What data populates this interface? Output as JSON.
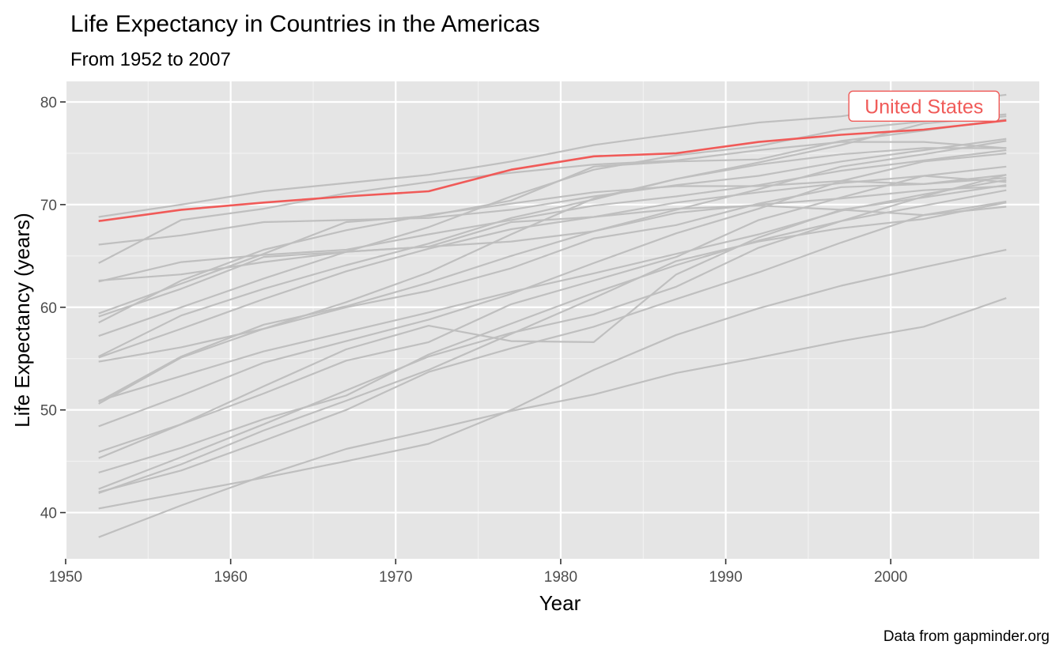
{
  "chart_data": {
    "type": "line",
    "title": "Life Expectancy in Countries in the Americas",
    "subtitle": "From 1952 to 2007",
    "xlabel": "Year",
    "ylabel": "Life Expectancy (years)",
    "caption": "Data from gapminder.org",
    "xlim": [
      1950,
      2009
    ],
    "ylim": [
      35.5,
      82
    ],
    "x_ticks": [
      1950,
      1960,
      1970,
      1980,
      1990,
      2000
    ],
    "y_ticks": [
      40,
      50,
      60,
      70,
      80
    ],
    "x_tick_labels": [
      "1950",
      "1960",
      "1970",
      "1980",
      "1990",
      "2000"
    ],
    "y_tick_labels": [
      "40",
      "50",
      "60",
      "70",
      "80"
    ],
    "grid": true,
    "highlight_color": "#f05a58",
    "background_color": "#e5e5e5",
    "other_line_color": "#bfbfbf",
    "x": [
      1952,
      1957,
      1962,
      1967,
      1972,
      1977,
      1982,
      1987,
      1992,
      1997,
      2002,
      2007
    ],
    "highlight": {
      "name": "United States",
      "label": "United States",
      "values": [
        68.4,
        69.5,
        70.2,
        70.8,
        71.3,
        73.4,
        74.7,
        75.0,
        76.1,
        76.8,
        77.3,
        78.2
      ]
    },
    "series": [
      {
        "values": [
          62.5,
          64.4,
          65.1,
          65.6,
          67.1,
          68.5,
          69.9,
          70.8,
          71.9,
          73.3,
          74.3,
          75.3
        ]
      },
      {
        "values": [
          40.4,
          41.9,
          43.4,
          45.0,
          46.7,
          50.0,
          53.9,
          57.3,
          59.9,
          62.1,
          63.9,
          65.6
        ]
      },
      {
        "values": [
          50.9,
          53.3,
          55.7,
          57.6,
          59.5,
          61.5,
          63.3,
          65.2,
          67.1,
          69.4,
          71.0,
          72.4
        ]
      },
      {
        "values": [
          68.8,
          70.0,
          71.3,
          72.1,
          72.9,
          74.2,
          75.8,
          76.9,
          78.0,
          78.6,
          79.8,
          80.7
        ]
      },
      {
        "values": [
          54.7,
          56.1,
          57.9,
          60.5,
          63.4,
          67.1,
          70.6,
          72.5,
          74.1,
          75.8,
          77.9,
          78.6
        ]
      },
      {
        "values": [
          50.6,
          55.1,
          57.9,
          60.0,
          61.6,
          63.8,
          66.7,
          68.0,
          70.1,
          71.7,
          72.0,
          72.9
        ]
      },
      {
        "values": [
          57.2,
          60.0,
          62.8,
          65.4,
          67.8,
          70.8,
          73.4,
          74.8,
          75.7,
          77.3,
          78.1,
          78.8
        ]
      },
      {
        "values": [
          59.4,
          62.3,
          65.2,
          68.3,
          68.9,
          70.4,
          73.7,
          74.2,
          74.4,
          76.2,
          77.2,
          78.3
        ]
      },
      {
        "values": [
          45.9,
          48.6,
          51.6,
          54.8,
          56.6,
          60.3,
          62.6,
          64.9,
          68.5,
          70.7,
          72.8,
          72.2
        ]
      },
      {
        "values": [
          48.4,
          51.4,
          54.6,
          56.7,
          58.8,
          61.3,
          64.3,
          67.2,
          69.6,
          72.3,
          74.2,
          74.99
        ]
      },
      {
        "values": [
          45.3,
          48.6,
          52.3,
          55.9,
          58.2,
          56.7,
          56.6,
          63.2,
          66.8,
          69.5,
          70.7,
          71.9
        ]
      },
      {
        "values": [
          42.0,
          44.1,
          47.0,
          50.0,
          53.7,
          56.0,
          58.1,
          60.8,
          63.4,
          66.3,
          68.98,
          70.3
        ]
      },
      {
        "values": [
          37.6,
          40.7,
          43.6,
          46.2,
          48.0,
          49.9,
          51.5,
          53.6,
          55.1,
          56.7,
          58.1,
          60.9
        ]
      },
      {
        "values": [
          41.9,
          44.7,
          48.0,
          50.9,
          53.9,
          57.4,
          60.9,
          64.5,
          66.4,
          67.7,
          68.6,
          70.2
        ]
      },
      {
        "values": [
          58.5,
          62.6,
          65.6,
          67.5,
          69.0,
          70.1,
          71.2,
          71.8,
          71.8,
          72.3,
          72.0,
          72.6
        ]
      },
      {
        "values": [
          50.8,
          55.2,
          58.3,
          60.1,
          62.4,
          65.0,
          67.4,
          69.5,
          71.5,
          73.7,
          74.9,
          76.2
        ]
      },
      {
        "values": [
          42.3,
          45.4,
          48.6,
          51.9,
          55.2,
          57.5,
          59.3,
          62.0,
          65.8,
          68.4,
          70.8,
          72.9
        ]
      },
      {
        "values": [
          55.2,
          59.2,
          61.8,
          64.1,
          66.2,
          68.7,
          70.5,
          72.5,
          73.9,
          74.9,
          75.5,
          75.5
        ]
      },
      {
        "values": [
          62.6,
          63.2,
          64.4,
          65.4,
          65.9,
          66.4,
          67.4,
          69.2,
          70.0,
          70.6,
          71.4,
          71.8
        ]
      },
      {
        "values": [
          43.9,
          46.3,
          49.1,
          51.4,
          55.4,
          58.4,
          61.4,
          64.1,
          66.5,
          68.4,
          69.9,
          71.4
        ]
      },
      {
        "values": [
          64.3,
          68.5,
          69.6,
          71.1,
          72.2,
          73.1,
          73.9,
          74.3,
          75.3,
          76.1,
          76.1,
          75.5
        ]
      },
      {
        "values": [
          59.1,
          61.8,
          64.9,
          65.4,
          65.9,
          68.3,
          68.8,
          69.6,
          69.9,
          69.5,
          68.98,
          69.8
        ]
      },
      {
        "values": [
          66.1,
          67.0,
          68.3,
          68.5,
          68.7,
          69.5,
          70.8,
          71.9,
          72.8,
          74.2,
          75.3,
          76.4
        ]
      },
      {
        "values": [
          55.1,
          57.9,
          60.8,
          63.5,
          65.7,
          67.6,
          68.8,
          70.2,
          71.2,
          72.1,
          72.8,
          73.7
        ]
      }
    ]
  }
}
